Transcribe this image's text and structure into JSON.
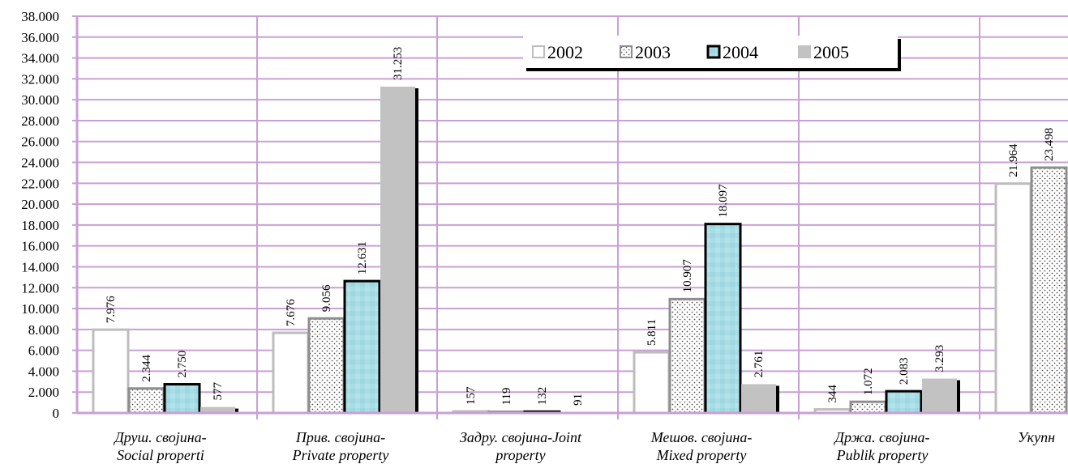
{
  "chart_data": {
    "type": "bar",
    "categories": [
      [
        "Друш. својина-",
        "Social properti"
      ],
      [
        "Прив. својина-",
        "Private property"
      ],
      [
        "Задру. својина-Joint",
        "property"
      ],
      [
        "Мешов. својина-",
        "Mixed property"
      ],
      [
        "Држа. својина-",
        "Publik property"
      ],
      [
        "Укупн",
        ""
      ]
    ],
    "series": [
      {
        "name": "2002",
        "values": [
          7976,
          7676,
          157,
          5811,
          344,
          21964
        ],
        "labels": [
          "7.976",
          "7.676",
          "157",
          "5.811",
          "344",
          "21.964"
        ]
      },
      {
        "name": "2003",
        "values": [
          2344,
          9056,
          119,
          10907,
          1072,
          23498
        ],
        "labels": [
          "2.344",
          "9.056",
          "119",
          "10.907",
          "1.072",
          "23.498"
        ]
      },
      {
        "name": "2004",
        "values": [
          2750,
          12631,
          132,
          18097,
          2083,
          null
        ],
        "labels": [
          "2.750",
          "12.631",
          "132",
          "18.097",
          "2.083",
          ""
        ]
      },
      {
        "name": "2005",
        "values": [
          577,
          31253,
          91,
          2761,
          3293,
          null
        ],
        "labels": [
          "577",
          "31.253",
          "91",
          "2.761",
          "3.293",
          ""
        ]
      }
    ],
    "ylim": [
      0,
      38000
    ],
    "yticks": [
      0,
      2000,
      4000,
      6000,
      8000,
      10000,
      12000,
      14000,
      16000,
      18000,
      20000,
      22000,
      24000,
      26000,
      28000,
      30000,
      32000,
      34000,
      36000,
      38000
    ],
    "ytick_labels": [
      "0",
      "2.000",
      "4.000",
      "6.000",
      "8.000",
      "10.000",
      "12.000",
      "14.000",
      "16.000",
      "18.000",
      "20.000",
      "22.000",
      "24.000",
      "26.000",
      "28.000",
      "30.000",
      "32.000",
      "34.000",
      "36.000",
      "38.000"
    ],
    "grid": true,
    "legend": "top-right",
    "colors": {
      "grid": "#c9a0d6",
      "s2002_fill": "#ffffff",
      "s2002_stroke": "#bdbdbd",
      "s2003_stroke": "#8e8e8e",
      "s2004_fill": "#a8dde6",
      "s2004_stroke": "#000000",
      "s2005_fill": "#c2c2c2"
    }
  }
}
